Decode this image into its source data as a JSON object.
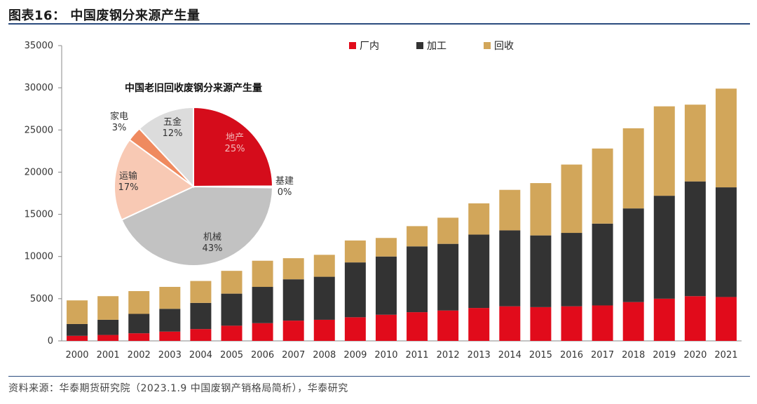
{
  "figure_title": "图表16：  中国废钢分来源产生量",
  "source_note": "资料来源：华泰期货研究院（2023.1.9 中国废钢产销格局简析），华泰研究",
  "colors": {
    "factory": "#e10b1b",
    "processing": "#333333",
    "recycling": "#d2a65a",
    "accent_rule": "#2b4c7e"
  },
  "chart_data": [
    {
      "type": "bar",
      "stacked": true,
      "categories": [
        "2000",
        "2001",
        "2002",
        "2003",
        "2004",
        "2005",
        "2006",
        "2007",
        "2008",
        "2009",
        "2010",
        "2011",
        "2012",
        "2013",
        "2014",
        "2015",
        "2016",
        "2017",
        "2018",
        "2019",
        "2020",
        "2021"
      ],
      "series": [
        {
          "name": "厂内",
          "color": "#e10b1b",
          "values": [
            600,
            700,
            900,
            1100,
            1400,
            1800,
            2100,
            2400,
            2500,
            2800,
            3100,
            3400,
            3600,
            3900,
            4100,
            4000,
            4100,
            4200,
            4600,
            5000,
            5300,
            5200
          ]
        },
        {
          "name": "加工",
          "color": "#333333",
          "values": [
            1400,
            1800,
            2300,
            2700,
            3100,
            3800,
            4300,
            4900,
            5100,
            6500,
            6900,
            7800,
            7900,
            8700,
            9000,
            8500,
            8700,
            9700,
            11100,
            12200,
            13600,
            13000
          ]
        },
        {
          "name": "回收",
          "color": "#d2a65a",
          "values": [
            2800,
            2800,
            2700,
            2600,
            2600,
            2700,
            3100,
            2500,
            2600,
            2600,
            2200,
            2400,
            3100,
            3700,
            4800,
            6200,
            8100,
            8900,
            9500,
            10600,
            9100,
            11700
          ]
        }
      ],
      "ylim": [
        0,
        35000
      ],
      "yticks": [
        0,
        5000,
        10000,
        15000,
        20000,
        25000,
        30000,
        35000
      ],
      "legend_position": "top-right",
      "grid": false
    },
    {
      "type": "pie",
      "title": "中国老旧回收废钢分来源产生量",
      "slices": [
        {
          "label": "地产",
          "value": 25,
          "display": "25%",
          "color": "#d50c1b"
        },
        {
          "label": "基建",
          "value": 0.3,
          "display": "0%",
          "color": "#bcbcbc"
        },
        {
          "label": "机械",
          "value": 43,
          "display": "43%",
          "color": "#c2c2c2"
        },
        {
          "label": "运输",
          "value": 17,
          "display": "17%",
          "color": "#f8c9b4"
        },
        {
          "label": "家电",
          "value": 3,
          "display": "3%",
          "color": "#ef8a5f"
        },
        {
          "label": "五金",
          "value": 12,
          "display": "12%",
          "color": "#dcdcdc"
        }
      ]
    }
  ]
}
